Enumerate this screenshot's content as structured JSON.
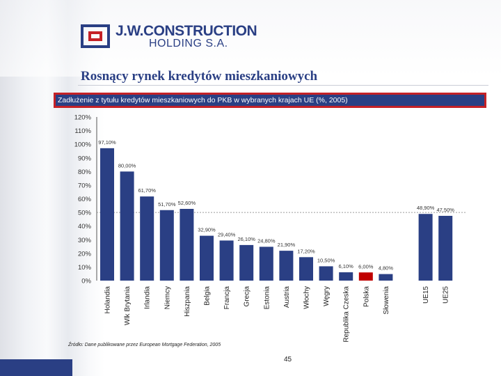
{
  "logo": {
    "name": "J.W.CONSTRUCTION",
    "sub": "HOLDING S.A."
  },
  "slide": {
    "title": "Rosnący rynek kredytów mieszkaniowych",
    "subtitle": "Zadłużenie z tytułu kredytów mieszkaniowych do PKB w wybranych krajach UE (%, 2005)",
    "source": "Źródło: Dane publikowane przez European Mortgage Federation, 2005",
    "page_number": "45"
  },
  "colors": {
    "bar": "#2a3f84",
    "highlight": "#c00000",
    "grid": "#9a9a9a",
    "border": "#c52126"
  },
  "chart_data": {
    "type": "bar",
    "categories": [
      "Holandia",
      "Wlk Brytania",
      "Irlandia",
      "Niemcy",
      "Hiszpania",
      "Belgia",
      "Francja",
      "Grecja",
      "Estonia",
      "Austria",
      "Włochy",
      "Węgry",
      "Republika Czeska",
      "Polska",
      "Słowenia",
      "",
      "UE15",
      "UE25"
    ],
    "values": [
      97.1,
      80.0,
      61.7,
      51.7,
      52.6,
      32.9,
      29.4,
      26.1,
      24.8,
      21.9,
      17.2,
      10.5,
      6.1,
      6.0,
      4.8,
      null,
      48.9,
      47.5
    ],
    "data_labels": [
      "97,10%",
      "80,00%",
      "61,70%",
      "51,70%",
      "52,60%",
      "32,90%",
      "29,40%",
      "26,10%",
      "24,80%",
      "21,90%",
      "17,20%",
      "10,50%",
      "6,10%",
      "6,00%",
      "4,80%",
      "",
      "48,90%",
      "47,50%"
    ],
    "highlight_index": 13,
    "y_ticks": [
      "0%",
      "10%",
      "20%",
      "30%",
      "40%",
      "50%",
      "60%",
      "70%",
      "80%",
      "90%",
      "100%",
      "110%",
      "120%"
    ],
    "ylim": [
      0,
      120
    ],
    "reference_line": 50,
    "grid": false
  }
}
